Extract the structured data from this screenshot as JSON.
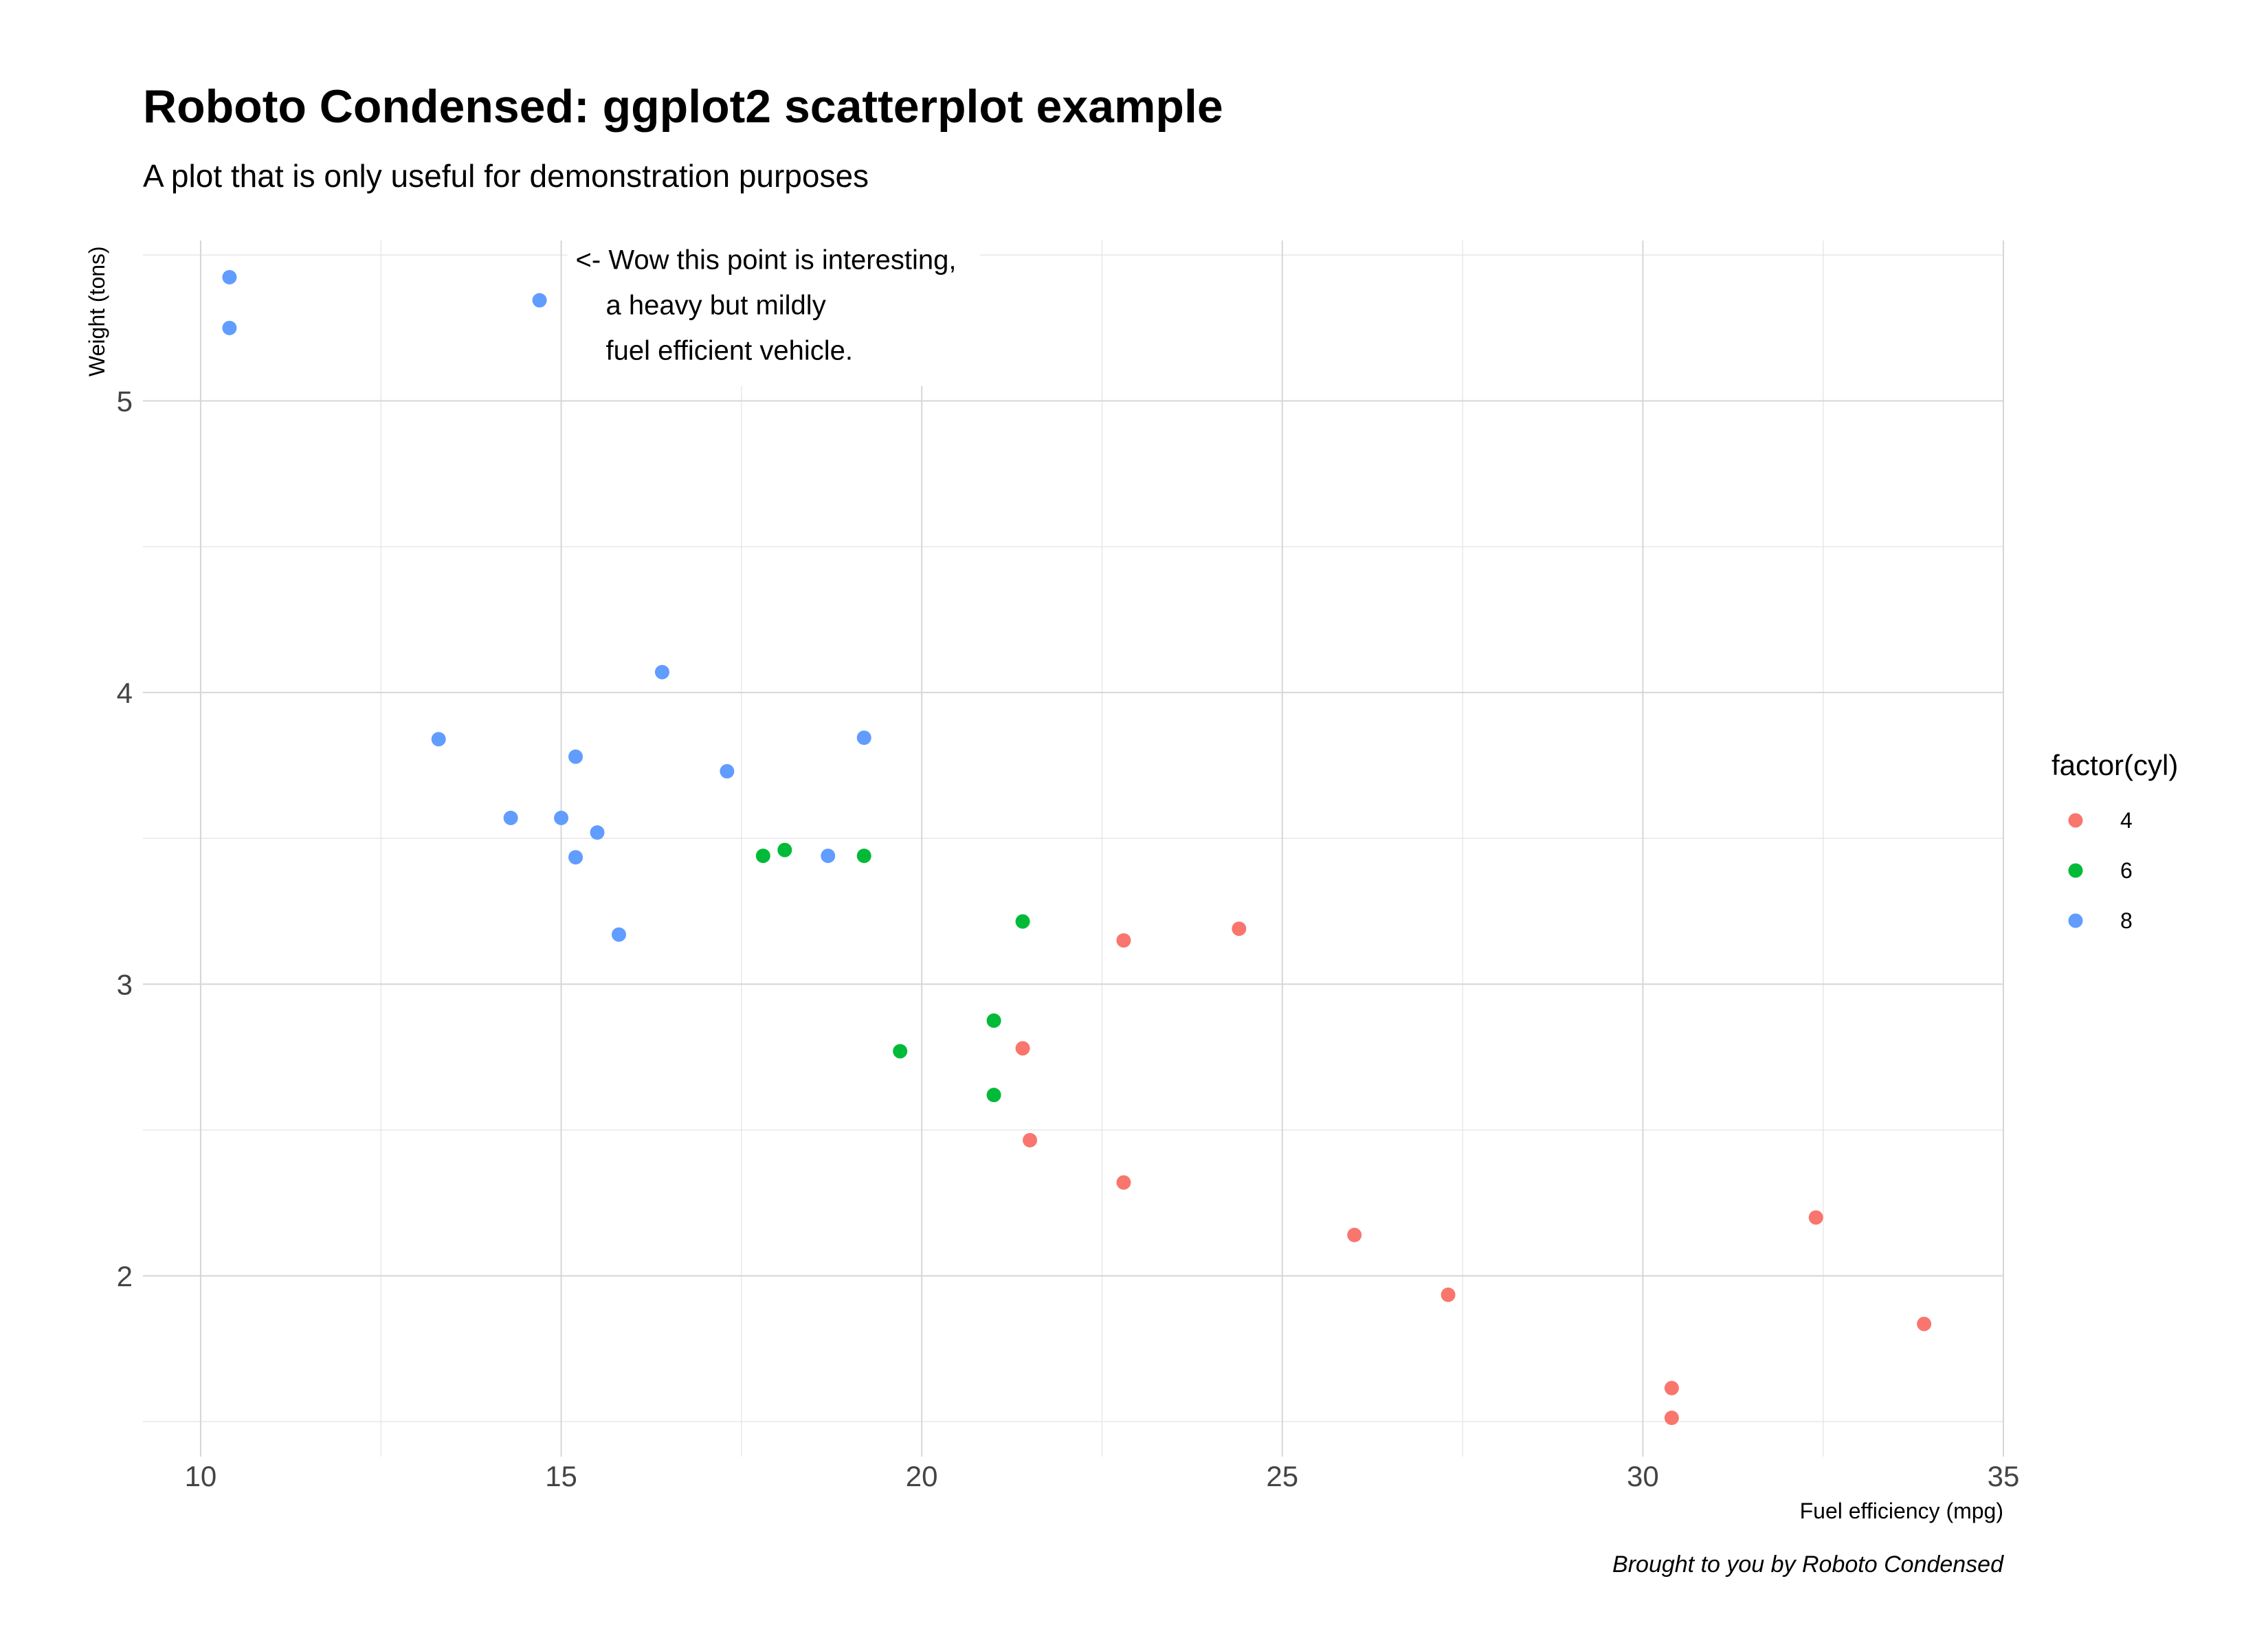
{
  "chart_data": {
    "type": "scatter",
    "title": "Roboto Condensed: ggplot2 scatterplot example",
    "subtitle": "A plot that is only useful for demonstration purposes",
    "xlabel": "Fuel efficiency (mpg)",
    "ylabel": "Weight (tons)",
    "caption": "Brought to you by Roboto Condensed",
    "xlim": [
      9.2,
      35.0
    ],
    "ylim": [
      1.38,
      5.55
    ],
    "x_ticks": [
      10,
      15,
      20,
      25,
      30,
      35
    ],
    "y_ticks": [
      2,
      3,
      4,
      5
    ],
    "x_tick_labels": [
      "10",
      "15",
      "20",
      "25",
      "30",
      "35"
    ],
    "y_tick_labels": [
      "2",
      "3",
      "4",
      "5"
    ],
    "grid": true,
    "legend": {
      "title": "factor(cyl)",
      "placement": "right",
      "entries": [
        "4",
        "6",
        "8"
      ]
    },
    "annotation": {
      "lines": [
        "<- Wow this point is interesting,",
        "a heavy but mildly",
        "fuel efficient vehicle."
      ],
      "anchor_x": 15.2,
      "anchor_y": 5.4
    },
    "series": [
      {
        "name": "4",
        "color": "#F8766D",
        "points": [
          [
            22.8,
            2.32
          ],
          [
            24.4,
            3.19
          ],
          [
            22.8,
            3.15
          ],
          [
            32.4,
            2.2
          ],
          [
            30.4,
            1.615
          ],
          [
            33.9,
            1.835
          ],
          [
            21.5,
            2.465
          ],
          [
            27.3,
            1.935
          ],
          [
            26.0,
            2.14
          ],
          [
            30.4,
            1.513
          ],
          [
            21.4,
            2.78
          ]
        ]
      },
      {
        "name": "6",
        "color": "#00BA38",
        "points": [
          [
            21.0,
            2.62
          ],
          [
            21.0,
            2.875
          ],
          [
            21.4,
            3.215
          ],
          [
            18.1,
            3.46
          ],
          [
            19.2,
            3.44
          ],
          [
            17.8,
            3.44
          ],
          [
            19.7,
            2.77
          ]
        ]
      },
      {
        "name": "8",
        "color": "#619CFF",
        "points": [
          [
            18.7,
            3.44
          ],
          [
            14.3,
            3.57
          ],
          [
            16.4,
            4.07
          ],
          [
            17.3,
            3.73
          ],
          [
            15.2,
            3.78
          ],
          [
            10.4,
            5.25
          ],
          [
            10.4,
            5.424
          ],
          [
            14.7,
            5.345
          ],
          [
            15.5,
            3.52
          ],
          [
            15.2,
            3.435
          ],
          [
            13.3,
            3.84
          ],
          [
            19.2,
            3.845
          ],
          [
            15.8,
            3.17
          ],
          [
            15.0,
            3.57
          ]
        ]
      }
    ]
  }
}
